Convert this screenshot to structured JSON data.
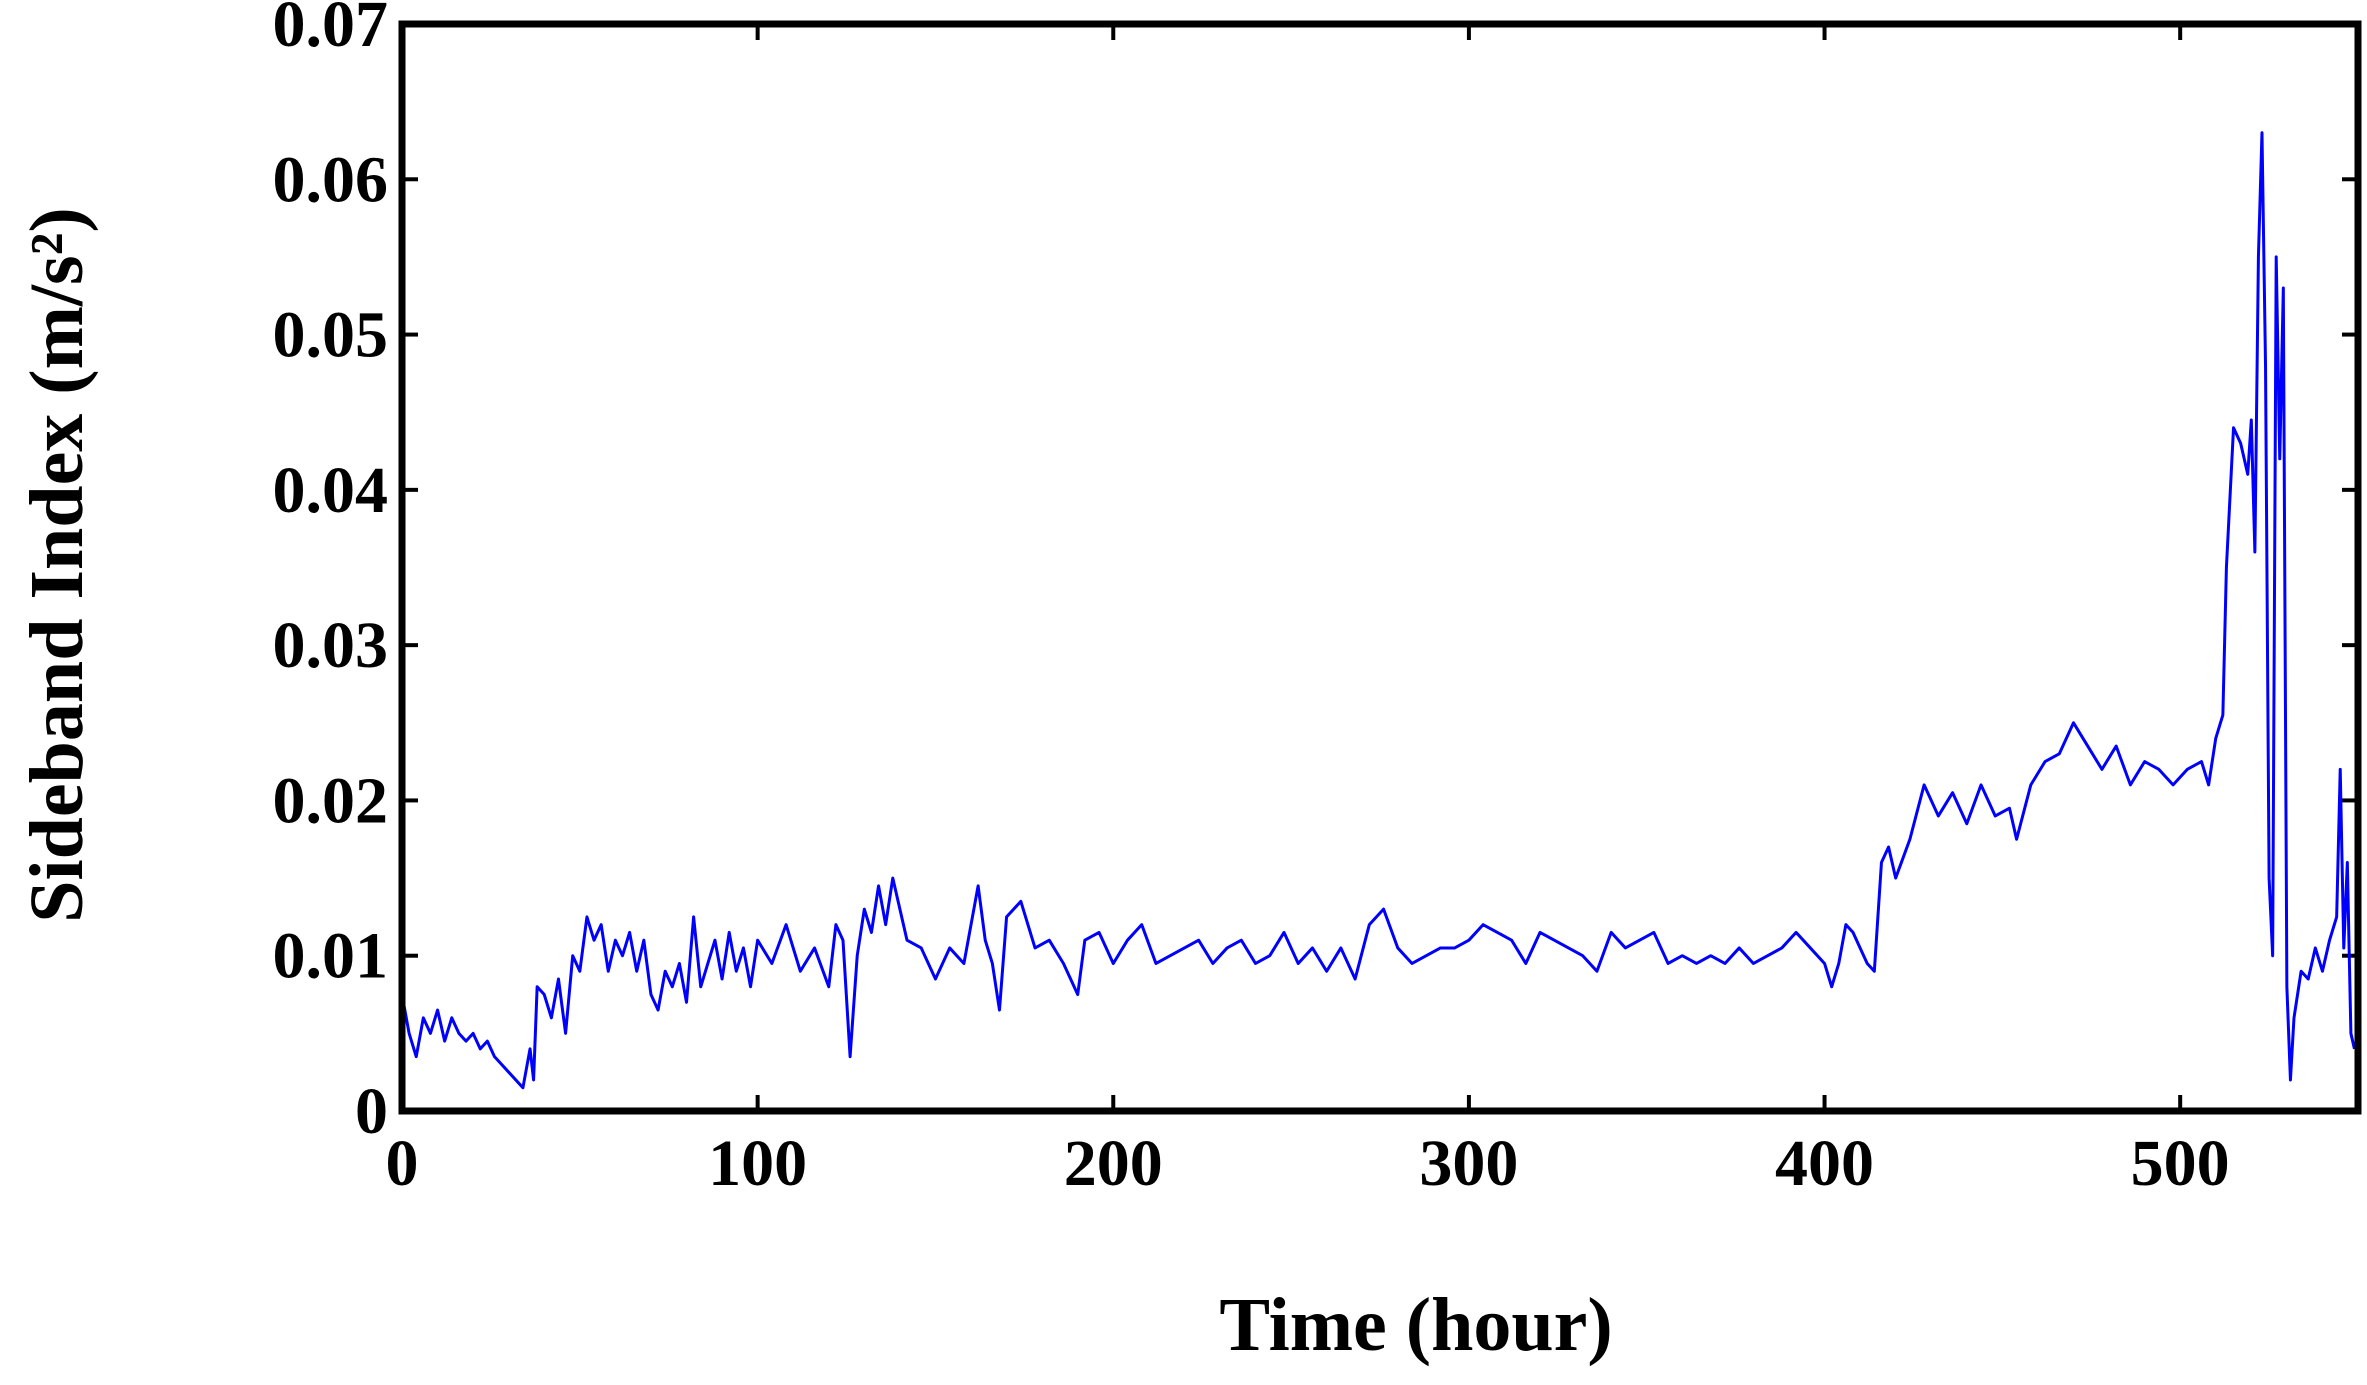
{
  "chart_data": {
    "type": "line",
    "xlabel": "Time (hour)",
    "ylabel": "Sideband Index (m/s²)",
    "xlim": [
      0,
      550
    ],
    "ylim": [
      0,
      0.07
    ],
    "xticks": [
      0,
      100,
      200,
      300,
      400,
      500
    ],
    "yticks": [
      0,
      0.01,
      0.02,
      0.03,
      0.04,
      0.05,
      0.06,
      0.07
    ],
    "series": [
      {
        "color": "#0000ff",
        "x": [
          0,
          2,
          4,
          6,
          8,
          10,
          12,
          14,
          16,
          18,
          20,
          22,
          24,
          26,
          28,
          30,
          32,
          34,
          36,
          37,
          38,
          40,
          42,
          44,
          46,
          48,
          50,
          52,
          54,
          56,
          58,
          60,
          62,
          64,
          66,
          68,
          70,
          72,
          74,
          76,
          78,
          80,
          82,
          84,
          86,
          88,
          90,
          92,
          94,
          96,
          98,
          100,
          104,
          108,
          112,
          116,
          120,
          122,
          124,
          126,
          128,
          130,
          132,
          134,
          136,
          138,
          140,
          142,
          146,
          150,
          154,
          158,
          162,
          164,
          166,
          168,
          170,
          174,
          178,
          182,
          186,
          190,
          192,
          196,
          200,
          204,
          208,
          212,
          216,
          220,
          224,
          228,
          232,
          236,
          240,
          244,
          248,
          252,
          256,
          260,
          264,
          268,
          272,
          276,
          280,
          284,
          288,
          292,
          296,
          300,
          304,
          308,
          312,
          316,
          320,
          324,
          328,
          332,
          336,
          340,
          344,
          348,
          352,
          356,
          360,
          364,
          368,
          372,
          376,
          380,
          384,
          388,
          392,
          396,
          400,
          402,
          404,
          406,
          408,
          410,
          412,
          414,
          416,
          418,
          420,
          424,
          428,
          432,
          436,
          440,
          444,
          448,
          452,
          454,
          458,
          462,
          466,
          470,
          474,
          478,
          482,
          486,
          490,
          494,
          498,
          502,
          506,
          508,
          510,
          512,
          513,
          515,
          517,
          519,
          520,
          521,
          522,
          523,
          524,
          525,
          526,
          527,
          528,
          529,
          530,
          531,
          532,
          534,
          536,
          538,
          540,
          542,
          544,
          545,
          546,
          547,
          548,
          549
        ],
        "values": [
          0.0075,
          0.005,
          0.0035,
          0.006,
          0.005,
          0.0065,
          0.0045,
          0.006,
          0.005,
          0.0045,
          0.005,
          0.004,
          0.0045,
          0.0035,
          0.003,
          0.0025,
          0.002,
          0.0015,
          0.004,
          0.002,
          0.008,
          0.0075,
          0.006,
          0.0085,
          0.005,
          0.01,
          0.009,
          0.0125,
          0.011,
          0.012,
          0.009,
          0.011,
          0.01,
          0.0115,
          0.009,
          0.011,
          0.0075,
          0.0065,
          0.009,
          0.008,
          0.0095,
          0.007,
          0.0125,
          0.008,
          0.0095,
          0.011,
          0.0085,
          0.0115,
          0.009,
          0.0105,
          0.008,
          0.011,
          0.0095,
          0.012,
          0.009,
          0.0105,
          0.008,
          0.012,
          0.011,
          0.0035,
          0.01,
          0.013,
          0.0115,
          0.0145,
          0.012,
          0.015,
          0.013,
          0.011,
          0.0105,
          0.0085,
          0.0105,
          0.0095,
          0.0145,
          0.011,
          0.0095,
          0.0065,
          0.0125,
          0.0135,
          0.0105,
          0.011,
          0.0095,
          0.0075,
          0.011,
          0.0115,
          0.0095,
          0.011,
          0.012,
          0.0095,
          0.01,
          0.0105,
          0.011,
          0.0095,
          0.0105,
          0.011,
          0.0095,
          0.01,
          0.0115,
          0.0095,
          0.0105,
          0.009,
          0.0105,
          0.0085,
          0.012,
          0.013,
          0.0105,
          0.0095,
          0.01,
          0.0105,
          0.0105,
          0.011,
          0.012,
          0.0115,
          0.011,
          0.0095,
          0.0115,
          0.011,
          0.0105,
          0.01,
          0.009,
          0.0115,
          0.0105,
          0.011,
          0.0115,
          0.0095,
          0.01,
          0.0095,
          0.01,
          0.0095,
          0.0105,
          0.0095,
          0.01,
          0.0105,
          0.0115,
          0.0105,
          0.0095,
          0.008,
          0.0095,
          0.012,
          0.0115,
          0.0105,
          0.0095,
          0.009,
          0.016,
          0.017,
          0.015,
          0.0175,
          0.021,
          0.019,
          0.0205,
          0.0185,
          0.021,
          0.019,
          0.0195,
          0.0175,
          0.021,
          0.0225,
          0.023,
          0.025,
          0.0235,
          0.022,
          0.0235,
          0.021,
          0.0225,
          0.022,
          0.021,
          0.022,
          0.0225,
          0.021,
          0.024,
          0.0255,
          0.035,
          0.044,
          0.043,
          0.041,
          0.0445,
          0.036,
          0.055,
          0.063,
          0.048,
          0.015,
          0.01,
          0.055,
          0.042,
          0.053,
          0.008,
          0.002,
          0.006,
          0.009,
          0.0085,
          0.0105,
          0.009,
          0.011,
          0.0125,
          0.022,
          0.0105,
          0.016,
          0.005,
          0.004
        ]
      }
    ]
  }
}
